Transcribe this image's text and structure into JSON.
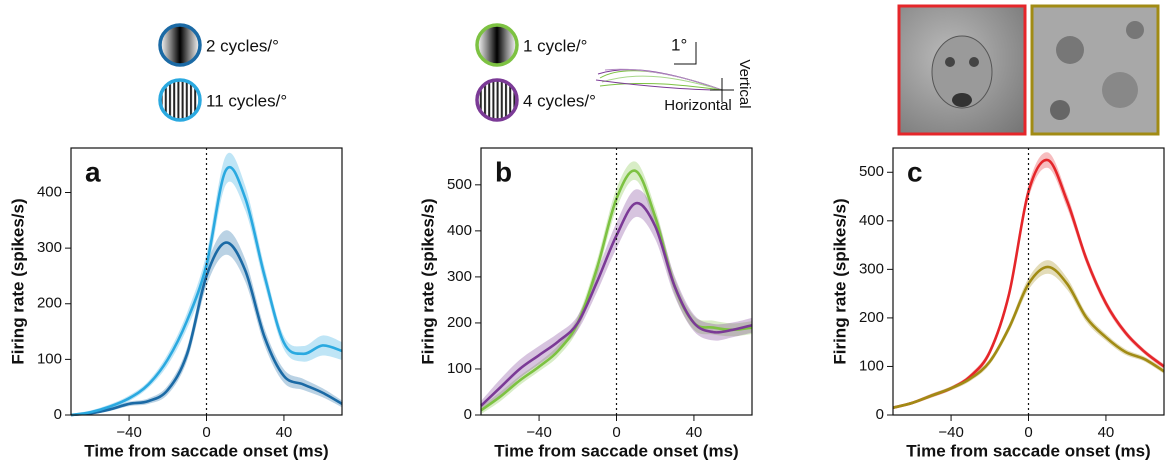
{
  "chart_data": [
    {
      "type": "line",
      "panel": "a",
      "xlabel": "Time from saccade onset (ms)",
      "ylabel": "Firing rate (spikes/s)",
      "x": [
        -70,
        -60,
        -50,
        -40,
        -30,
        -20,
        -10,
        0,
        10,
        20,
        30,
        40,
        50,
        60,
        70
      ],
      "xlim": [
        -70,
        70
      ],
      "xticks": [
        {
          "value": -40,
          "label": "−40"
        },
        0,
        40
      ],
      "ylim": [
        0,
        480
      ],
      "yticks": [
        0,
        100,
        200,
        300,
        400
      ],
      "reference_x": 0,
      "series": [
        {
          "name": "2 cycles/°",
          "color": "#1b6aa5",
          "values": [
            0,
            3,
            10,
            20,
            25,
            45,
            110,
            250,
            310,
            260,
            140,
            70,
            55,
            40,
            20
          ],
          "errors": [
            2,
            2,
            3,
            4,
            5,
            8,
            12,
            18,
            22,
            20,
            15,
            12,
            10,
            8,
            6
          ]
        },
        {
          "name": "11 cycles/°",
          "color": "#2aa9e0",
          "values": [
            0,
            5,
            15,
            30,
            55,
            100,
            170,
            270,
            440,
            390,
            250,
            130,
            110,
            125,
            115
          ],
          "errors": [
            2,
            3,
            4,
            5,
            6,
            10,
            14,
            20,
            26,
            22,
            16,
            12,
            14,
            18,
            16
          ]
        }
      ]
    },
    {
      "type": "line",
      "panel": "b",
      "xlabel": "Time from saccade onset (ms)",
      "ylabel": "Firing rate (spikes/s)",
      "x": [
        -70,
        -60,
        -50,
        -40,
        -30,
        -20,
        -10,
        0,
        10,
        20,
        30,
        40,
        50,
        60,
        70
      ],
      "xlim": [
        -70,
        70
      ],
      "xticks": [
        {
          "value": -40,
          "label": "−40"
        },
        0,
        40
      ],
      "ylim": [
        0,
        580
      ],
      "yticks": [
        0,
        100,
        200,
        300,
        400,
        500
      ],
      "reference_x": 0,
      "inset_labels": {
        "scale": "1°",
        "horizontal": "Horizontal",
        "vertical": "Vertical"
      },
      "series": [
        {
          "name": "1 cycle/°",
          "color": "#7dc242",
          "values": [
            10,
            40,
            75,
            105,
            140,
            200,
            320,
            470,
            530,
            430,
            280,
            200,
            190,
            185,
            190
          ],
          "errors": [
            8,
            10,
            10,
            10,
            12,
            14,
            18,
            22,
            20,
            20,
            18,
            15,
            15,
            14,
            14
          ]
        },
        {
          "name": "4 cycles/°",
          "color": "#7b3a96",
          "values": [
            20,
            60,
            100,
            130,
            160,
            200,
            290,
            390,
            460,
            410,
            280,
            200,
            180,
            185,
            195
          ],
          "errors": [
            10,
            18,
            20,
            20,
            18,
            16,
            22,
            28,
            30,
            28,
            22,
            18,
            18,
            16,
            16
          ]
        }
      ]
    },
    {
      "type": "line",
      "panel": "c",
      "xlabel": "Time from saccade onset (ms)",
      "ylabel": "Firing rate (spikes/s)",
      "x": [
        -70,
        -60,
        -50,
        -40,
        -30,
        -20,
        -10,
        0,
        10,
        20,
        30,
        40,
        50,
        60,
        70
      ],
      "xlim": [
        -70,
        70
      ],
      "xticks": [
        {
          "value": -40,
          "label": "−40"
        },
        0,
        40
      ],
      "ylim": [
        0,
        550
      ],
      "yticks": [
        0,
        100,
        200,
        300,
        400,
        500
      ],
      "reference_x": 0,
      "series": [
        {
          "color": "#e5262a",
          "values": [
            15,
            25,
            40,
            55,
            80,
            130,
            250,
            460,
            525,
            440,
            320,
            230,
            170,
            130,
            100
          ],
          "errors": [
            3,
            3,
            4,
            4,
            5,
            7,
            10,
            14,
            16,
            14,
            10,
            8,
            6,
            5,
            5
          ]
        },
        {
          "color": "#a18b14",
          "values": [
            15,
            25,
            40,
            55,
            75,
            110,
            180,
            270,
            305,
            270,
            200,
            160,
            130,
            115,
            90
          ],
          "errors": [
            3,
            3,
            4,
            4,
            5,
            6,
            8,
            12,
            14,
            12,
            9,
            7,
            6,
            5,
            5
          ]
        }
      ]
    }
  ]
}
